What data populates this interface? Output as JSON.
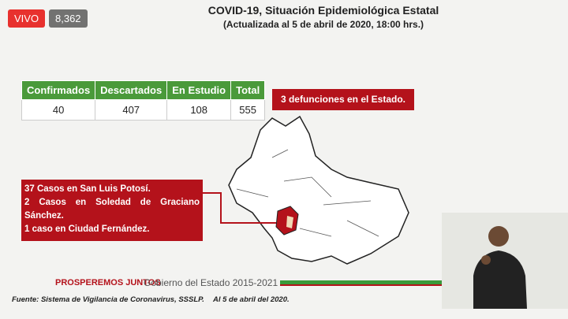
{
  "stream": {
    "live_label": "VIVO",
    "viewers": "8,362"
  },
  "slide": {
    "title": "COVID-19, Situación Epidemiológica Estatal",
    "subtitle": "(Actualizada al 5 de abril de 2020, 18:00 hrs.)",
    "table": {
      "header": [
        "Confirmados",
        "Descartados",
        "En Estudio",
        "Total"
      ],
      "rows": [
        [
          40,
          407,
          108,
          555
        ]
      ]
    },
    "deaths_note": "3 defunciones en el Estado.",
    "cases": [
      "37 Casos en San Luis Potosí.",
      "2 Casos en Soledad de Graciano Sánchez.",
      "1 caso en Ciudad Fernández."
    ],
    "slogan": "PROSPEREMOS JUNTOS",
    "government": "Gobierno del Estado 2015-2021",
    "source": "Fuente: Sistema de Vigilancia de Coronavirus, SSSLP.",
    "date_note": "Al 5 de abril del 2020."
  }
}
